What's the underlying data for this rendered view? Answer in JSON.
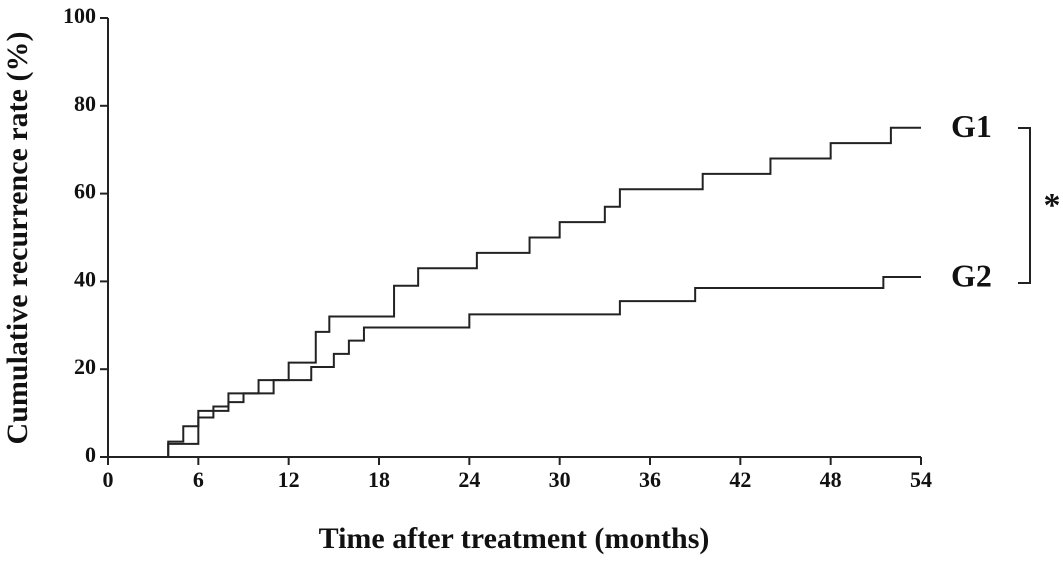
{
  "chart_data": {
    "type": "step",
    "xlabel": "Time after treatment (months)",
    "ylabel": "Cumulative recurrence rate (%)",
    "annotation": "*",
    "xlim": [
      0,
      54
    ],
    "xticks": [
      0,
      6,
      12,
      18,
      24,
      30,
      36,
      42,
      48,
      54
    ],
    "ylim": [
      0,
      100
    ],
    "yticks": [
      0,
      20,
      40,
      60,
      80,
      100
    ],
    "series": [
      {
        "name": "G1",
        "color": "#222222",
        "x": [
          4,
          5,
          6,
          7,
          8,
          10,
          12,
          13.8,
          14.7,
          19,
          20.6,
          24.5,
          28,
          30,
          33,
          34,
          39.5,
          44,
          48,
          52,
          54
        ],
        "values": [
          3.5,
          7,
          10.5,
          11.5,
          14.5,
          17.5,
          21.5,
          28.5,
          32,
          39,
          43,
          46.5,
          50,
          53.5,
          57,
          61,
          64.5,
          68,
          71.5,
          75,
          75
        ]
      },
      {
        "name": "G2",
        "color": "#222222",
        "x": [
          4,
          6,
          7,
          8,
          9,
          11,
          13.5,
          15,
          16,
          17,
          24,
          34,
          39,
          51.5,
          54
        ],
        "values": [
          3,
          9,
          10.5,
          12.5,
          14.5,
          17.5,
          20.5,
          23.5,
          26.5,
          29.5,
          32.5,
          35.5,
          38.5,
          41,
          41
        ]
      }
    ]
  }
}
